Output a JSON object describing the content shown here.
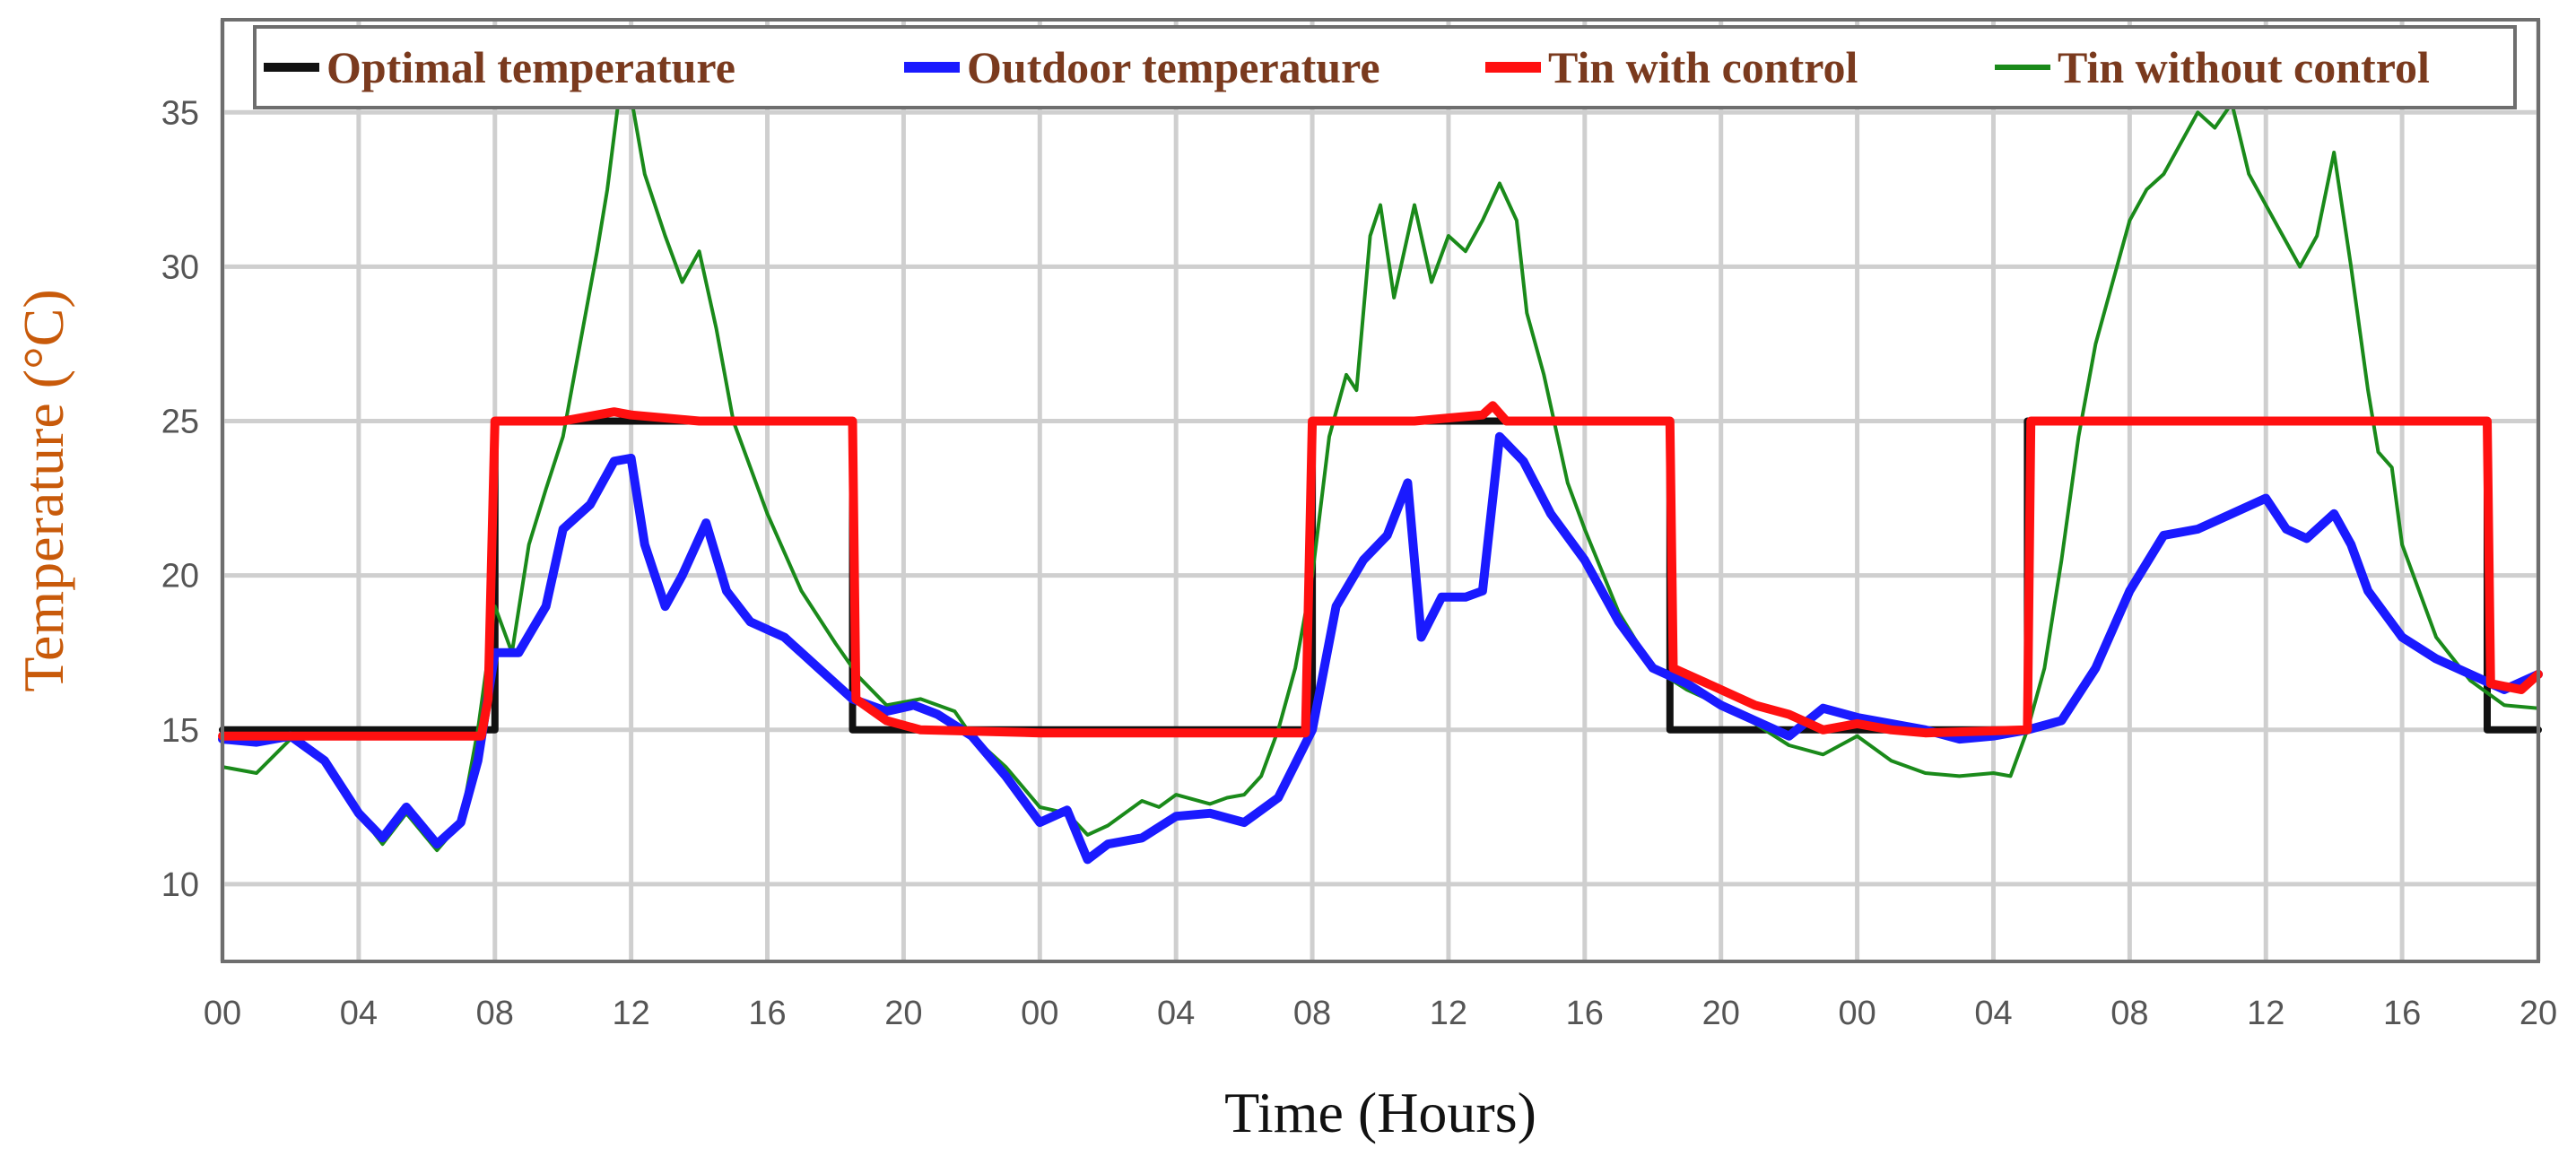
{
  "chart_data": {
    "type": "line",
    "title": "",
    "xlabel": "Time (Hours)",
    "ylabel": "Temperature (°C)",
    "ylim": [
      7.5,
      38
    ],
    "xlim": [
      0,
      68
    ],
    "x_unit": "hours from start",
    "grid": true,
    "legend_position": "top",
    "x_ticks": [
      {
        "x": 0,
        "label": "00"
      },
      {
        "x": 4,
        "label": "04"
      },
      {
        "x": 8,
        "label": "08"
      },
      {
        "x": 12,
        "label": "12"
      },
      {
        "x": 16,
        "label": "16"
      },
      {
        "x": 20,
        "label": "20"
      },
      {
        "x": 24,
        "label": "00"
      },
      {
        "x": 28,
        "label": "04"
      },
      {
        "x": 32,
        "label": "08"
      },
      {
        "x": 36,
        "label": "12"
      },
      {
        "x": 40,
        "label": "16"
      },
      {
        "x": 44,
        "label": "20"
      },
      {
        "x": 48,
        "label": "00"
      },
      {
        "x": 52,
        "label": "04"
      },
      {
        "x": 56,
        "label": "08"
      },
      {
        "x": 60,
        "label": "12"
      },
      {
        "x": 64,
        "label": "16"
      },
      {
        "x": 68,
        "label": "20"
      }
    ],
    "y_ticks": [
      {
        "y": 10,
        "label": "10"
      },
      {
        "y": 15,
        "label": "15"
      },
      {
        "y": 20,
        "label": "20"
      },
      {
        "y": 25,
        "label": "25"
      },
      {
        "y": 30,
        "label": "30"
      },
      {
        "y": 35,
        "label": "35"
      }
    ],
    "series": [
      {
        "name": "Optimal temperature",
        "color": "#111111",
        "points": [
          [
            0,
            15
          ],
          [
            8,
            15
          ],
          [
            8,
            25
          ],
          [
            18.5,
            25
          ],
          [
            18.5,
            15
          ],
          [
            32,
            15
          ],
          [
            32,
            25
          ],
          [
            42.5,
            25
          ],
          [
            42.5,
            15
          ],
          [
            53,
            15
          ],
          [
            53,
            25
          ],
          [
            66.5,
            25
          ],
          [
            66.5,
            15
          ],
          [
            68,
            15
          ]
        ]
      },
      {
        "name": "Outdoor temperature",
        "color": "#1a1aff",
        "points": [
          [
            0,
            14.7
          ],
          [
            1,
            14.6
          ],
          [
            2,
            14.8
          ],
          [
            3,
            14
          ],
          [
            4,
            12.3
          ],
          [
            4.7,
            11.5
          ],
          [
            5.4,
            12.5
          ],
          [
            6.3,
            11.3
          ],
          [
            7,
            12
          ],
          [
            7.5,
            14
          ],
          [
            8,
            17.5
          ],
          [
            8.7,
            17.5
          ],
          [
            9.5,
            19
          ],
          [
            10,
            21.5
          ],
          [
            10.8,
            22.3
          ],
          [
            11.5,
            23.7
          ],
          [
            12,
            23.8
          ],
          [
            12.4,
            21
          ],
          [
            13,
            19
          ],
          [
            13.5,
            20
          ],
          [
            14.2,
            21.7
          ],
          [
            14.8,
            19.5
          ],
          [
            15.5,
            18.5
          ],
          [
            16.5,
            18
          ],
          [
            17.5,
            17
          ],
          [
            18.5,
            16
          ],
          [
            19.5,
            15.6
          ],
          [
            20.3,
            15.8
          ],
          [
            21,
            15.5
          ],
          [
            22,
            14.8
          ],
          [
            23,
            13.5
          ],
          [
            24,
            12
          ],
          [
            24.8,
            12.4
          ],
          [
            25.4,
            10.8
          ],
          [
            26,
            11.3
          ],
          [
            27,
            11.5
          ],
          [
            28,
            12.2
          ],
          [
            29,
            12.3
          ],
          [
            30,
            12
          ],
          [
            31,
            12.8
          ],
          [
            32,
            15
          ],
          [
            32.7,
            19
          ],
          [
            33.5,
            20.5
          ],
          [
            34.2,
            21.3
          ],
          [
            34.8,
            23
          ],
          [
            35.2,
            18
          ],
          [
            35.8,
            19.3
          ],
          [
            36.5,
            19.3
          ],
          [
            37,
            19.5
          ],
          [
            37.5,
            24.5
          ],
          [
            38.2,
            23.7
          ],
          [
            39,
            22
          ],
          [
            40,
            20.5
          ],
          [
            41,
            18.5
          ],
          [
            42,
            17
          ],
          [
            43,
            16.5
          ],
          [
            44,
            15.8
          ],
          [
            45,
            15.3
          ],
          [
            46,
            14.8
          ],
          [
            47,
            15.7
          ],
          [
            48,
            15.4
          ],
          [
            49,
            15.2
          ],
          [
            50,
            15
          ],
          [
            51,
            14.7
          ],
          [
            52,
            14.8
          ],
          [
            53,
            15
          ],
          [
            54,
            15.3
          ],
          [
            55,
            17
          ],
          [
            56,
            19.5
          ],
          [
            57,
            21.3
          ],
          [
            58,
            21.5
          ],
          [
            59,
            22
          ],
          [
            60,
            22.5
          ],
          [
            60.6,
            21.5
          ],
          [
            61.2,
            21.2
          ],
          [
            62,
            22
          ],
          [
            62.5,
            21
          ],
          [
            63,
            19.5
          ],
          [
            64,
            18
          ],
          [
            65,
            17.3
          ],
          [
            66,
            16.8
          ],
          [
            67,
            16.3
          ],
          [
            68,
            16.8
          ]
        ]
      },
      {
        "name": "Tin with control",
        "color": "#ff1010",
        "points": [
          [
            0,
            14.8
          ],
          [
            7.6,
            14.8
          ],
          [
            7.8,
            16
          ],
          [
            8,
            25
          ],
          [
            10,
            25
          ],
          [
            11.5,
            25.3
          ],
          [
            12,
            25.2
          ],
          [
            14,
            25
          ],
          [
            18.5,
            25
          ],
          [
            18.6,
            16
          ],
          [
            19.5,
            15.3
          ],
          [
            20.5,
            15
          ],
          [
            24,
            14.9
          ],
          [
            31.8,
            14.9
          ],
          [
            32,
            25
          ],
          [
            35,
            25
          ],
          [
            37,
            25.2
          ],
          [
            37.3,
            25.5
          ],
          [
            37.7,
            25
          ],
          [
            42.5,
            25
          ],
          [
            42.6,
            17
          ],
          [
            44,
            16.3
          ],
          [
            45,
            15.8
          ],
          [
            46,
            15.5
          ],
          [
            47,
            15
          ],
          [
            48,
            15.2
          ],
          [
            49,
            15
          ],
          [
            50,
            14.9
          ],
          [
            53,
            15
          ],
          [
            53.1,
            25
          ],
          [
            60,
            25
          ],
          [
            66.5,
            25
          ],
          [
            66.6,
            16.5
          ],
          [
            67.5,
            16.3
          ],
          [
            68,
            16.8
          ]
        ]
      },
      {
        "name": "Tin without control",
        "color": "#1a8a1a",
        "points": [
          [
            0,
            13.8
          ],
          [
            1,
            13.6
          ],
          [
            2,
            14.7
          ],
          [
            3,
            14
          ],
          [
            4,
            12.3
          ],
          [
            4.7,
            11.3
          ],
          [
            5.4,
            12.3
          ],
          [
            6.3,
            11.1
          ],
          [
            7,
            12
          ],
          [
            7.5,
            15
          ],
          [
            8,
            19
          ],
          [
            8.5,
            17.5
          ],
          [
            9,
            21
          ],
          [
            9.5,
            22.8
          ],
          [
            10,
            24.5
          ],
          [
            10.5,
            27.5
          ],
          [
            11,
            30.5
          ],
          [
            11.3,
            32.5
          ],
          [
            11.7,
            36
          ],
          [
            12,
            35.5
          ],
          [
            12.4,
            33
          ],
          [
            13,
            31
          ],
          [
            13.5,
            29.5
          ],
          [
            14,
            30.5
          ],
          [
            14.5,
            28
          ],
          [
            15,
            25
          ],
          [
            16,
            22
          ],
          [
            17,
            19.5
          ],
          [
            18,
            17.8
          ],
          [
            18.7,
            16.7
          ],
          [
            19.5,
            15.8
          ],
          [
            20.5,
            16
          ],
          [
            21.5,
            15.6
          ],
          [
            22,
            14.8
          ],
          [
            23,
            13.8
          ],
          [
            24,
            12.5
          ],
          [
            24.8,
            12.3
          ],
          [
            25.4,
            11.6
          ],
          [
            26,
            11.9
          ],
          [
            27,
            12.7
          ],
          [
            27.5,
            12.5
          ],
          [
            28,
            12.9
          ],
          [
            29,
            12.6
          ],
          [
            29.5,
            12.8
          ],
          [
            30,
            12.9
          ],
          [
            30.5,
            13.5
          ],
          [
            31,
            15
          ],
          [
            31.5,
            17
          ],
          [
            32,
            20
          ],
          [
            32.5,
            24.5
          ],
          [
            33,
            26.5
          ],
          [
            33.3,
            26
          ],
          [
            33.7,
            31
          ],
          [
            34,
            32
          ],
          [
            34.4,
            29
          ],
          [
            35,
            32
          ],
          [
            35.5,
            29.5
          ],
          [
            36,
            31
          ],
          [
            36.5,
            30.5
          ],
          [
            37,
            31.5
          ],
          [
            37.5,
            32.7
          ],
          [
            38,
            31.5
          ],
          [
            38.3,
            28.5
          ],
          [
            38.8,
            26.5
          ],
          [
            39.5,
            23
          ],
          [
            40,
            21.5
          ],
          [
            41,
            18.8
          ],
          [
            42,
            17
          ],
          [
            43,
            16.3
          ],
          [
            44,
            15.8
          ],
          [
            45,
            15.2
          ],
          [
            46,
            14.5
          ],
          [
            47,
            14.2
          ],
          [
            48,
            14.8
          ],
          [
            49,
            14
          ],
          [
            50,
            13.6
          ],
          [
            51,
            13.5
          ],
          [
            52,
            13.6
          ],
          [
            52.5,
            13.5
          ],
          [
            53,
            15
          ],
          [
            53.5,
            17
          ],
          [
            54,
            20.5
          ],
          [
            54.5,
            24.5
          ],
          [
            55,
            27.5
          ],
          [
            55.5,
            29.5
          ],
          [
            56,
            31.5
          ],
          [
            56.5,
            32.5
          ],
          [
            57,
            33
          ],
          [
            57.5,
            34
          ],
          [
            58,
            35
          ],
          [
            58.5,
            34.5
          ],
          [
            59,
            35.3
          ],
          [
            59.5,
            33
          ],
          [
            60,
            32
          ],
          [
            60.5,
            31
          ],
          [
            61,
            30
          ],
          [
            61.5,
            31
          ],
          [
            62,
            33.7
          ],
          [
            62.5,
            30
          ],
          [
            63,
            26
          ],
          [
            63.3,
            24
          ],
          [
            63.7,
            23.5
          ],
          [
            64,
            21
          ],
          [
            65,
            18
          ],
          [
            66,
            16.6
          ],
          [
            67,
            15.8
          ],
          [
            68,
            15.7
          ]
        ]
      }
    ]
  }
}
